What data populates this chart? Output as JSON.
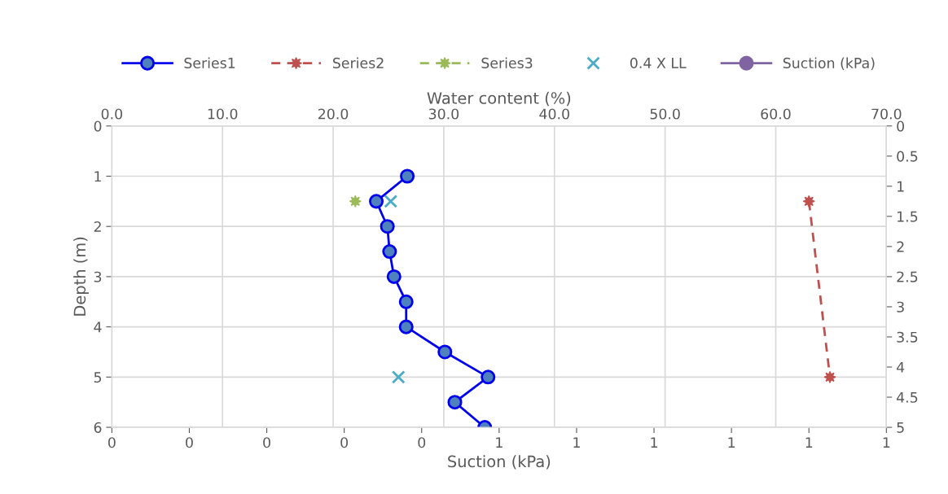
{
  "chart_data": {
    "type": "line",
    "xlabel": "Suction (kPa)",
    "x2label": "Water content (%)",
    "ylabel": "Depth (m)",
    "xlim": [
      0,
      1
    ],
    "xticks": [
      {
        "value": 0,
        "label": "0"
      },
      {
        "value": 0.1,
        "label": "0"
      },
      {
        "value": 0.2,
        "label": "0"
      },
      {
        "value": 0.3,
        "label": "0"
      },
      {
        "value": 0.4,
        "label": "0"
      },
      {
        "value": 0.5,
        "label": "1"
      },
      {
        "value": 0.6,
        "label": "1"
      },
      {
        "value": 0.7,
        "label": "1"
      },
      {
        "value": 0.8,
        "label": "1"
      },
      {
        "value": 0.9,
        "label": "1"
      },
      {
        "value": 1,
        "label": "1"
      }
    ],
    "x2lim": [
      0,
      70
    ],
    "x2ticks": [
      {
        "value": 0,
        "label": "0.0"
      },
      {
        "value": 10,
        "label": "10.0"
      },
      {
        "value": 20,
        "label": "20.0"
      },
      {
        "value": 30,
        "label": "30.0"
      },
      {
        "value": 40,
        "label": "40.0"
      },
      {
        "value": 50,
        "label": "50.0"
      },
      {
        "value": 60,
        "label": "60.0"
      },
      {
        "value": 70,
        "label": "70.0"
      }
    ],
    "ylim": [
      6,
      0
    ],
    "yticks": [
      0,
      1,
      2,
      3,
      4,
      5,
      6
    ],
    "y2lim": [
      5,
      0
    ],
    "y2ticks": [
      0,
      0.5,
      1,
      1.5,
      2,
      2.5,
      3,
      3.5,
      4,
      4.5,
      5
    ],
    "grid": true,
    "legend": "top",
    "series": [
      {
        "name": "Series1",
        "axis": "x2",
        "color": "#0000ee",
        "marker": "circle",
        "line_style": "solid",
        "x": [
          26.7,
          23.9,
          24.9,
          25.1,
          25.5,
          26.6,
          26.6,
          30.1,
          34.0,
          31.0,
          33.7
        ],
        "values": [
          1,
          1.5,
          2,
          2.5,
          3,
          3.5,
          4,
          4.5,
          5,
          5.5,
          6
        ]
      },
      {
        "name": "Series2",
        "axis": "x2",
        "color": "#c0504d",
        "marker": "star",
        "line_style": "dashed",
        "x": [
          63.0,
          64.9
        ],
        "values": [
          1.5,
          5
        ]
      },
      {
        "name": "Series3",
        "axis": "x2",
        "color": "#9bbb59",
        "marker": "star",
        "line_style": "dashed",
        "x": [
          22.0
        ],
        "values": [
          1.5
        ]
      },
      {
        "name": "0.4 X LL",
        "type": "scatter",
        "axis": "x2",
        "color": "#4bacc6",
        "marker": "cross",
        "x": [
          25.2,
          25.9
        ],
        "values": [
          1.5,
          5
        ]
      },
      {
        "name": "Suction (kPa)",
        "axis": "y2",
        "color": "#8064a2",
        "marker": "circle",
        "line_style": "solid",
        "x": [
          null
        ],
        "values": [
          null
        ]
      }
    ]
  }
}
